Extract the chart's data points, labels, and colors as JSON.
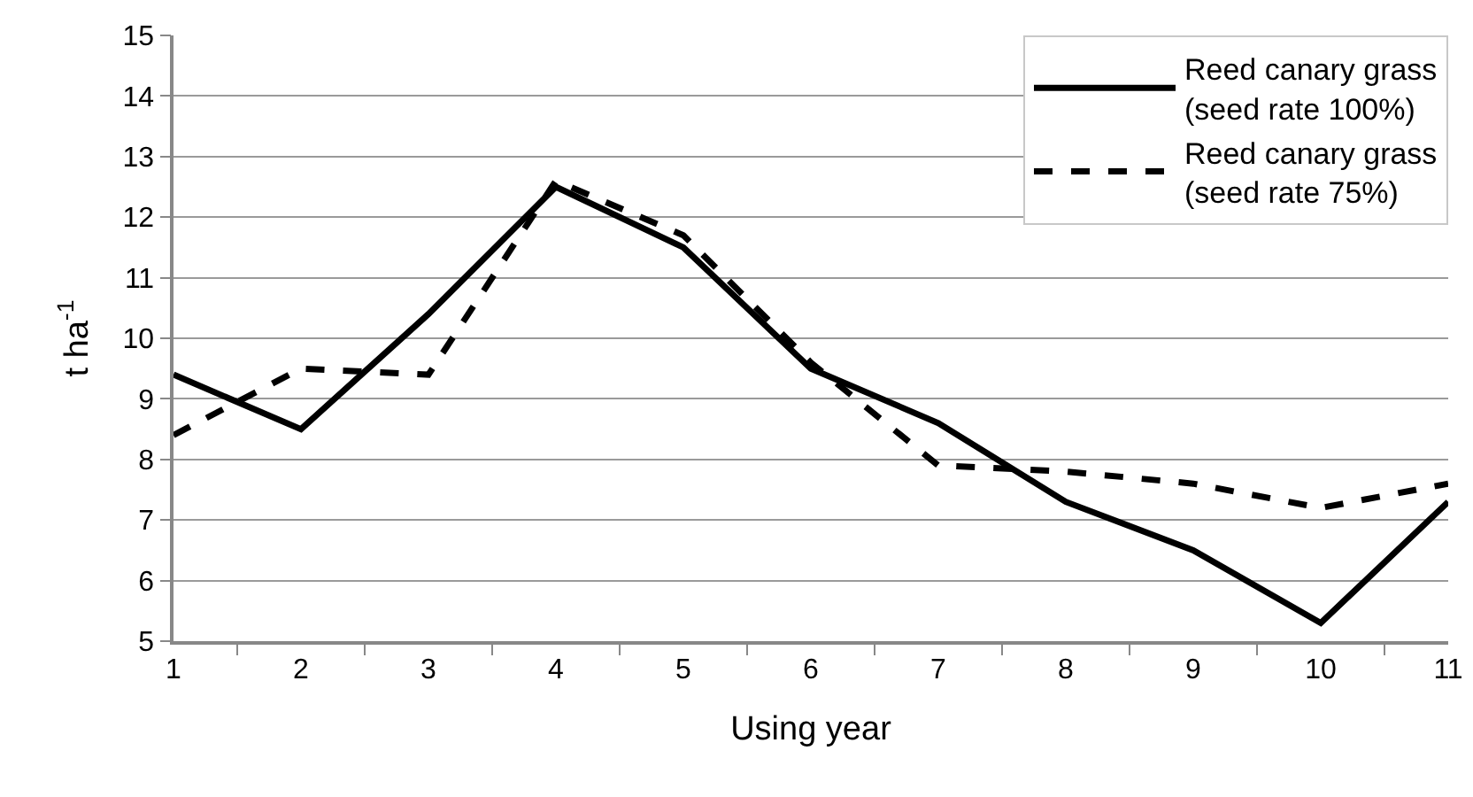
{
  "chart_data": {
    "type": "line",
    "xlabel": "Using year",
    "ylabel": "t ha$^{-1}$",
    "categories": [
      "1",
      "2",
      "3",
      "4",
      "5",
      "6",
      "7",
      "8",
      "9",
      "10",
      "11"
    ],
    "series": [
      {
        "name": "Reed canary grass (seed rate 100%)",
        "color": "#000000",
        "line_style": "solid",
        "values": [
          9.4,
          8.5,
          10.4,
          12.5,
          11.5,
          9.5,
          8.6,
          7.3,
          6.5,
          5.3,
          7.3
        ]
      },
      {
        "name": "Reed canary grass (seed rate 75%)",
        "color": "#000000",
        "line_style": "dashed",
        "values": [
          8.4,
          9.5,
          9.4,
          12.6,
          11.7,
          9.6,
          7.9,
          7.8,
          7.6,
          7.2,
          7.6
        ]
      }
    ],
    "ylim": [
      5,
      15
    ],
    "yticks": [
      5,
      6,
      7,
      8,
      9,
      10,
      11,
      12,
      13,
      14,
      15
    ],
    "grid": "y",
    "legend": "top right",
    "marker": "none"
  }
}
